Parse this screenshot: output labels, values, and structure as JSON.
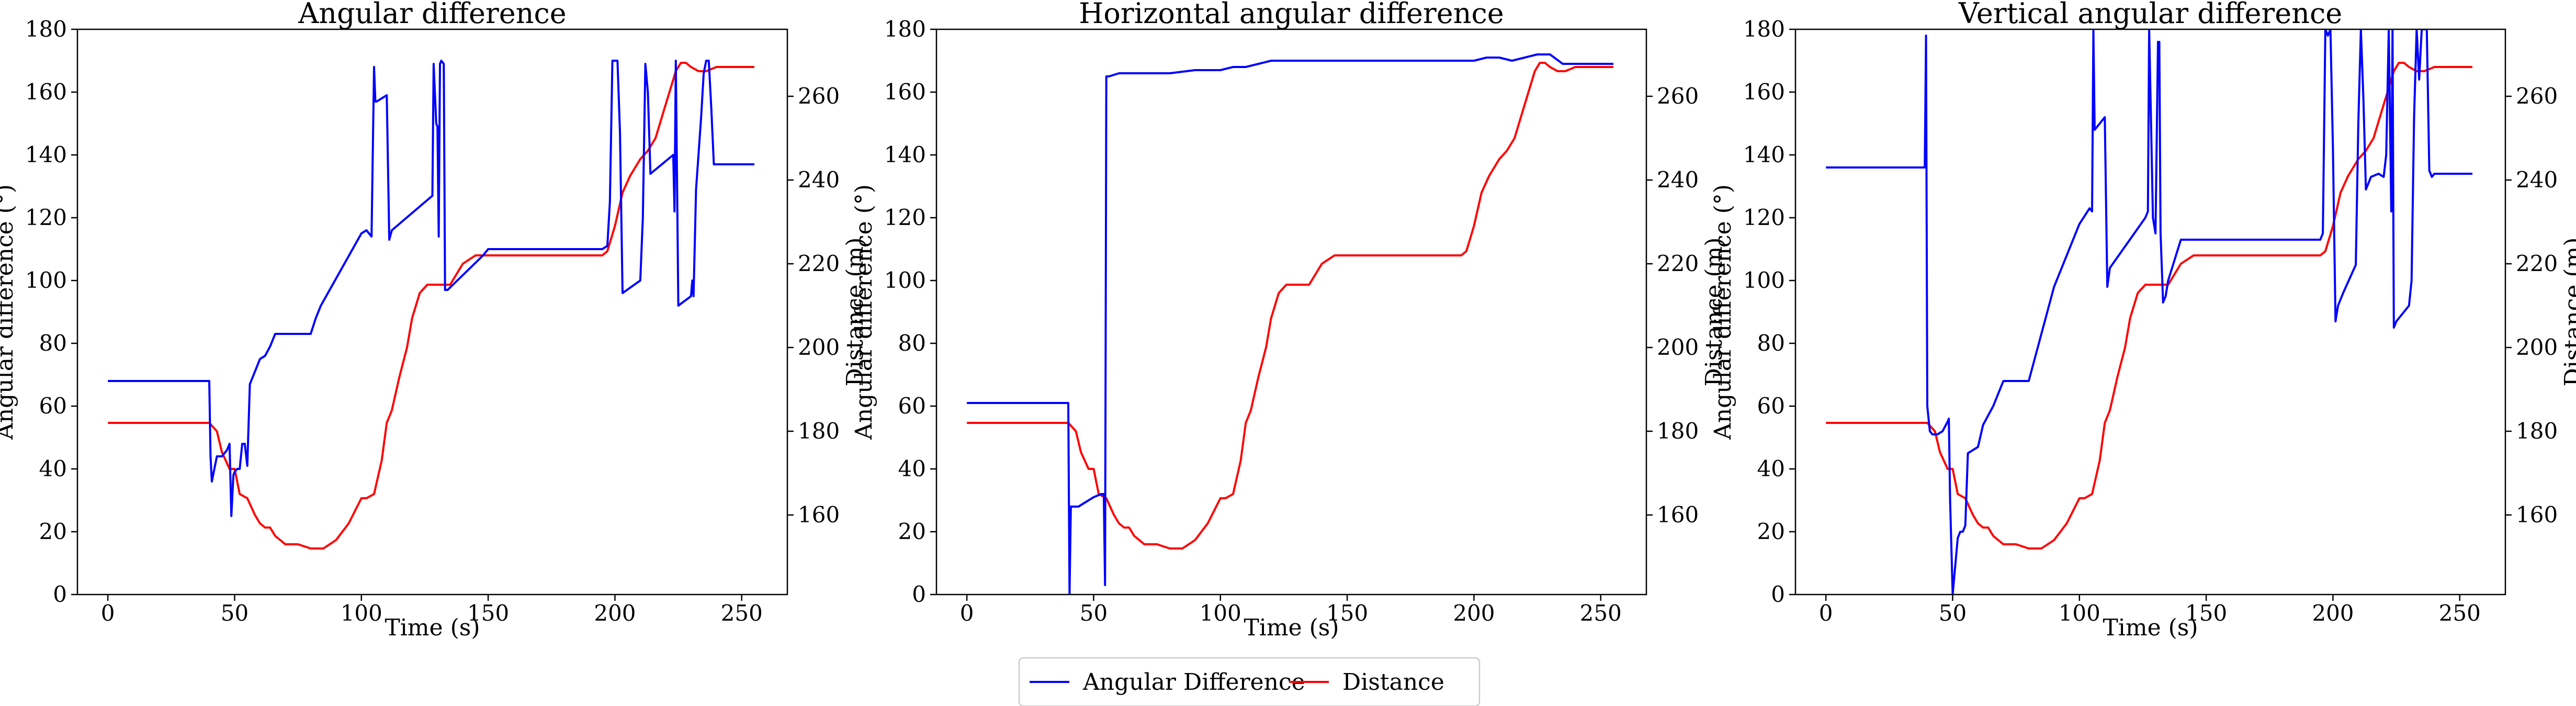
{
  "legend": {
    "items": [
      {
        "label": "Angular Difference",
        "color": "#0000ff"
      },
      {
        "label": "Distance",
        "color": "#ff0000"
      }
    ],
    "placement": "bottom-center"
  },
  "chart_data": [
    {
      "type": "line",
      "title": "Angular difference",
      "xlabel": "Time (s)",
      "ylabel": "Angular difference (°)",
      "y2label": "Distance (m)",
      "xlim": [
        -12,
        268
      ],
      "ylim": [
        0,
        180
      ],
      "y2lim": [
        141,
        276
      ],
      "xticks": [
        0,
        50,
        100,
        150,
        200,
        250
      ],
      "yticks": [
        0,
        20,
        40,
        60,
        80,
        100,
        120,
        140,
        160,
        180
      ],
      "y2ticks": [
        160,
        180,
        200,
        220,
        240,
        260
      ],
      "grid": false,
      "series": [
        {
          "name": "Angular Difference",
          "axis": "left",
          "color": "#0000ff",
          "x": [
            0,
            40,
            40.5,
            41,
            43,
            45,
            47,
            48,
            48.7,
            49.5,
            50,
            51,
            52,
            53,
            54,
            55,
            56,
            58,
            60,
            62,
            64,
            66,
            70,
            80,
            82,
            84,
            100,
            102,
            104,
            105,
            105.5,
            106,
            110,
            111,
            112,
            128,
            128.5,
            129.5,
            130,
            130.5,
            131,
            131.5,
            132.5,
            133,
            133.5,
            134,
            148,
            150,
            195,
            197,
            198,
            199,
            200,
            201,
            202,
            203,
            210,
            211,
            212,
            213,
            214,
            223,
            223.5,
            224,
            225,
            230,
            230.5,
            231,
            232,
            234,
            235,
            236,
            237,
            238,
            239,
            240,
            255
          ],
          "y": [
            68,
            68,
            44,
            36,
            44,
            44,
            46,
            48,
            25,
            38,
            39,
            40,
            40,
            48,
            48,
            41,
            67,
            71,
            75,
            76,
            79,
            83,
            83,
            83,
            88,
            92,
            115,
            116,
            114,
            168,
            157,
            157,
            159,
            113,
            116,
            127,
            169,
            150,
            149,
            114,
            169,
            170,
            169,
            97,
            97,
            97,
            108,
            110,
            110,
            111,
            125,
            170,
            170,
            170,
            147,
            96,
            100,
            120,
            169,
            160,
            134,
            140,
            122,
            170,
            92,
            95,
            100,
            95,
            129,
            152,
            166,
            170,
            170,
            155,
            137,
            137,
            137
          ]
        },
        {
          "name": "Distance",
          "axis": "right",
          "color": "#ff0000",
          "x": [
            0,
            40,
            43,
            45,
            48,
            50,
            52,
            55,
            58,
            60,
            62,
            64,
            66,
            70,
            75,
            80,
            85,
            90,
            95,
            100,
            102,
            105,
            108,
            110,
            112,
            115,
            118,
            120,
            123,
            126,
            128,
            130,
            135,
            140,
            145,
            150,
            195,
            197,
            200,
            203,
            206,
            210,
            213,
            216,
            219,
            222,
            224,
            226,
            228,
            230,
            233,
            236,
            240,
            255
          ],
          "y": [
            182,
            182,
            180,
            175,
            171,
            171,
            165,
            164,
            160,
            158,
            157,
            157,
            155,
            153,
            153,
            152,
            152,
            154,
            158,
            164,
            164,
            165,
            173,
            182,
            185,
            193,
            200,
            207,
            213,
            215,
            215,
            215,
            215,
            220,
            222,
            222,
            222,
            223,
            229,
            237,
            241,
            245,
            247,
            250,
            256,
            262,
            266,
            268,
            268,
            267,
            266,
            266,
            267,
            267
          ]
        }
      ]
    },
    {
      "type": "line",
      "title": "Horizontal angular difference",
      "xlabel": "Time (s)",
      "ylabel": "Angular difference (°)",
      "y2label": "Distance (m)",
      "xlim": [
        -12,
        268
      ],
      "ylim": [
        0,
        180
      ],
      "y2lim": [
        141,
        276
      ],
      "xticks": [
        0,
        50,
        100,
        150,
        200,
        250
      ],
      "yticks": [
        0,
        20,
        40,
        60,
        80,
        100,
        120,
        140,
        160,
        180
      ],
      "y2ticks": [
        160,
        180,
        200,
        220,
        240,
        260
      ],
      "grid": false,
      "series": [
        {
          "name": "Angular Difference",
          "axis": "left",
          "color": "#0000ff",
          "x": [
            0,
            40,
            40.5,
            41,
            42,
            44,
            46,
            48,
            50,
            53,
            54,
            54.5,
            55,
            56,
            60,
            70,
            80,
            90,
            100,
            105,
            110,
            115,
            120,
            125,
            130,
            140,
            150,
            200,
            205,
            210,
            215,
            220,
            225,
            230,
            235,
            240,
            250,
            255
          ],
          "y": [
            61,
            61,
            0,
            28,
            28,
            28,
            29,
            30,
            31,
            32,
            32,
            3,
            165,
            165,
            166,
            166,
            166,
            167,
            167,
            168,
            168,
            169,
            170,
            170,
            170,
            170,
            170,
            170,
            171,
            171,
            170,
            171,
            172,
            172,
            169,
            169,
            169,
            169
          ]
        },
        {
          "name": "Distance",
          "axis": "right",
          "color": "#ff0000",
          "x": [
            0,
            40,
            43,
            45,
            48,
            50,
            52,
            55,
            58,
            60,
            62,
            64,
            66,
            70,
            75,
            80,
            85,
            90,
            95,
            100,
            102,
            105,
            108,
            110,
            112,
            115,
            118,
            120,
            123,
            126,
            128,
            130,
            135,
            140,
            145,
            150,
            195,
            197,
            200,
            203,
            206,
            210,
            213,
            216,
            219,
            222,
            224,
            226,
            228,
            230,
            233,
            236,
            240,
            255
          ],
          "y": [
            182,
            182,
            180,
            175,
            171,
            171,
            165,
            164,
            160,
            158,
            157,
            157,
            155,
            153,
            153,
            152,
            152,
            154,
            158,
            164,
            164,
            165,
            173,
            182,
            185,
            193,
            200,
            207,
            213,
            215,
            215,
            215,
            215,
            220,
            222,
            222,
            222,
            223,
            229,
            237,
            241,
            245,
            247,
            250,
            256,
            262,
            266,
            268,
            268,
            267,
            266,
            266,
            267,
            267
          ]
        }
      ]
    },
    {
      "type": "line",
      "title": "Vertical angular difference",
      "xlabel": "Time (s)",
      "ylabel": "Angular difference (°)",
      "y2label": "Distance (m)",
      "xlim": [
        -12,
        268
      ],
      "ylim": [
        0,
        180
      ],
      "y2lim": [
        141,
        276
      ],
      "xticks": [
        0,
        50,
        100,
        150,
        200,
        250
      ],
      "yticks": [
        0,
        20,
        40,
        60,
        80,
        100,
        120,
        140,
        160,
        180
      ],
      "y2ticks": [
        160,
        180,
        200,
        220,
        240,
        260
      ],
      "grid": false,
      "series": [
        {
          "name": "Angular Difference",
          "axis": "left",
          "color": "#0000ff",
          "x": [
            0,
            39,
            39.5,
            40,
            41,
            42,
            44,
            46,
            48,
            48.5,
            49,
            50,
            52,
            53,
            54,
            55,
            56,
            60,
            62,
            64,
            66,
            70,
            75,
            80,
            90,
            100,
            104,
            105,
            105.5,
            106,
            108,
            109,
            110,
            111,
            112,
            126,
            127,
            127.5,
            128,
            129,
            130,
            131,
            131.5,
            132,
            133,
            134,
            135,
            140,
            145,
            195,
            196,
            197,
            198,
            199,
            200,
            201,
            202,
            203,
            204,
            209,
            210,
            211,
            212,
            213,
            214,
            215,
            218,
            220,
            221,
            222,
            223,
            223.5,
            224,
            225,
            230,
            231,
            232,
            233,
            234,
            235,
            236,
            237,
            238,
            239,
            240,
            255
          ],
          "y": [
            136,
            136,
            178,
            60,
            52,
            51,
            51,
            52,
            55,
            56,
            30,
            0,
            18,
            20,
            20,
            22,
            45,
            47,
            54,
            57,
            60,
            68,
            68,
            68,
            98,
            118,
            123,
            122,
            180,
            148,
            150,
            151,
            152,
            98,
            104,
            120,
            122,
            180,
            160,
            120,
            115,
            176,
            176,
            115,
            93,
            95,
            100,
            113,
            113,
            113,
            115,
            180,
            178,
            180,
            142,
            87,
            92,
            94,
            96,
            105,
            150,
            180,
            158,
            129,
            131,
            133,
            134,
            133,
            140,
            180,
            122,
            180,
            85,
            87,
            92,
            100,
            152,
            180,
            164,
            180,
            180,
            180,
            135,
            133,
            134,
            134
          ]
        },
        {
          "name": "Distance",
          "axis": "right",
          "color": "#ff0000",
          "x": [
            0,
            40,
            43,
            45,
            48,
            50,
            52,
            55,
            58,
            60,
            62,
            64,
            66,
            70,
            75,
            80,
            85,
            90,
            95,
            100,
            102,
            105,
            108,
            110,
            112,
            115,
            118,
            120,
            123,
            126,
            128,
            130,
            135,
            140,
            145,
            150,
            195,
            197,
            200,
            203,
            206,
            210,
            213,
            216,
            219,
            222,
            224,
            226,
            228,
            230,
            233,
            236,
            240,
            255
          ],
          "y": [
            182,
            182,
            180,
            175,
            171,
            171,
            165,
            164,
            160,
            158,
            157,
            157,
            155,
            153,
            153,
            152,
            152,
            154,
            158,
            164,
            164,
            165,
            173,
            182,
            185,
            193,
            200,
            207,
            213,
            215,
            215,
            215,
            215,
            220,
            222,
            222,
            222,
            223,
            229,
            237,
            241,
            245,
            247,
            250,
            256,
            262,
            266,
            268,
            268,
            267,
            266,
            266,
            267,
            267
          ]
        }
      ]
    }
  ]
}
